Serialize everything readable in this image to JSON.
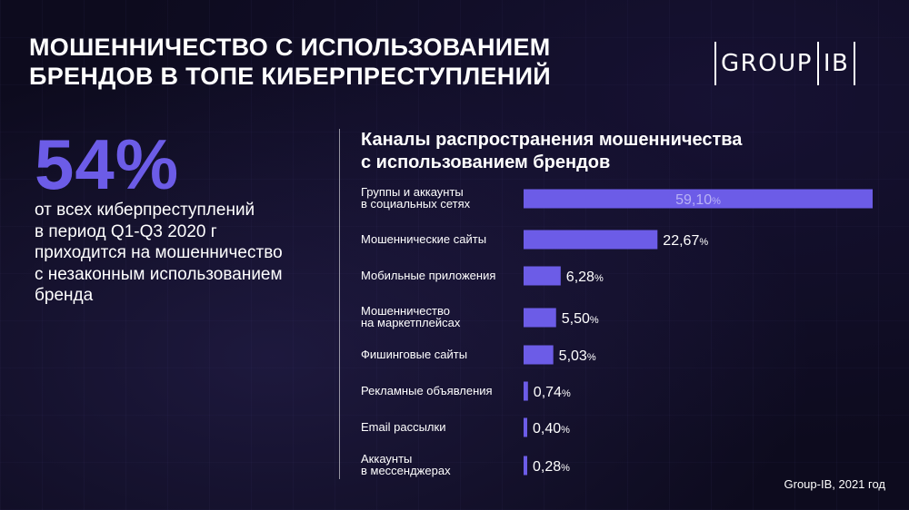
{
  "header": {
    "title_line1": "МОШЕННИЧЕСТВО С ИСПОЛЬЗОВАНИЕМ",
    "title_line2": "БРЕНДОВ В ТОПЕ КИБЕРПРЕСТУПЛЕНИЙ",
    "logo_left": "GROUP",
    "logo_right": "IB"
  },
  "highlight": {
    "value": "54%",
    "lines": [
      "от всех киберпреступлений",
      "в период Q1-Q3 2020 г",
      "приходится на мошенничество",
      "с незаконным использованием",
      "бренда"
    ]
  },
  "source": "Group-IB, 2021 год",
  "colors": {
    "accent": "#6c5ce7",
    "background": "#0d0b1e",
    "text": "#ffffff"
  },
  "chart_data": {
    "type": "bar",
    "orientation": "horizontal",
    "title_line1": "Каналы распространения мошенничества",
    "title_line2": "с использованием брендов",
    "categories": [
      [
        "Группы и аккаунты",
        "в социальных сетях"
      ],
      [
        "Мошеннические сайты"
      ],
      [
        "Мобильные приложения"
      ],
      [
        "Мошенничество",
        "на маркетплейсах"
      ],
      [
        "Фишинговые сайты"
      ],
      [
        "Рекламные объявления"
      ],
      [
        "Email рассылки"
      ],
      [
        "Аккаунты",
        "в мессенджерах"
      ]
    ],
    "values": [
      59.1,
      22.67,
      6.28,
      5.5,
      5.03,
      0.74,
      0.4,
      0.28
    ],
    "value_labels": [
      "59,10",
      "22,67",
      "6,28",
      "5,50",
      "5,03",
      "0,74",
      "0,40",
      "0,28"
    ],
    "unit": "%",
    "xlim": [
      0,
      59.1
    ]
  }
}
